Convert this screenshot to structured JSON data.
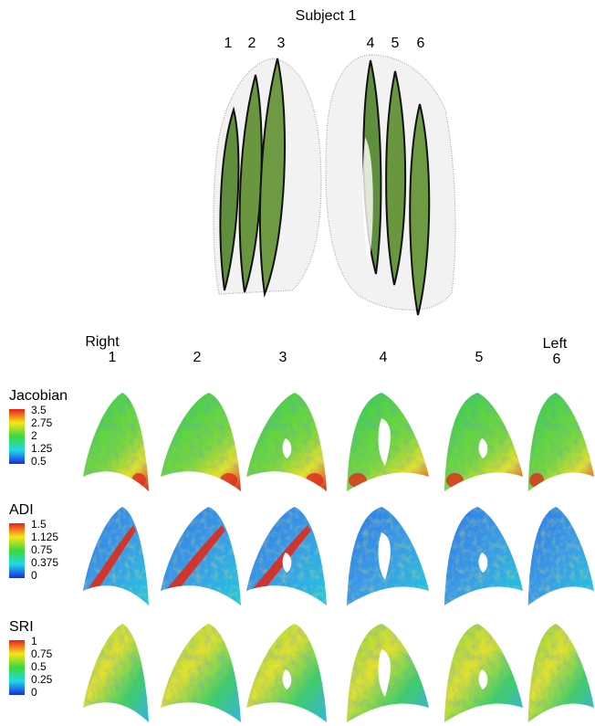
{
  "title": "Subject 1",
  "slice_labels": [
    "1",
    "2",
    "3",
    "4",
    "5",
    "6"
  ],
  "panels": {
    "side_labels": {
      "right": "Right",
      "left": "Left"
    },
    "columns": [
      "1",
      "2",
      "3",
      "4",
      "5",
      "6"
    ],
    "rows": [
      {
        "label": "Jacobian",
        "colorbar_ticks": [
          3.5,
          2.75,
          2,
          1.25,
          0.5
        ]
      },
      {
        "label": "ADI",
        "colorbar_ticks": [
          1.5,
          1.125,
          0.75,
          0.375,
          0
        ]
      },
      {
        "label": "SRI",
        "colorbar_ticks": [
          1,
          0.75,
          0.5,
          0.25,
          0
        ]
      }
    ]
  }
}
